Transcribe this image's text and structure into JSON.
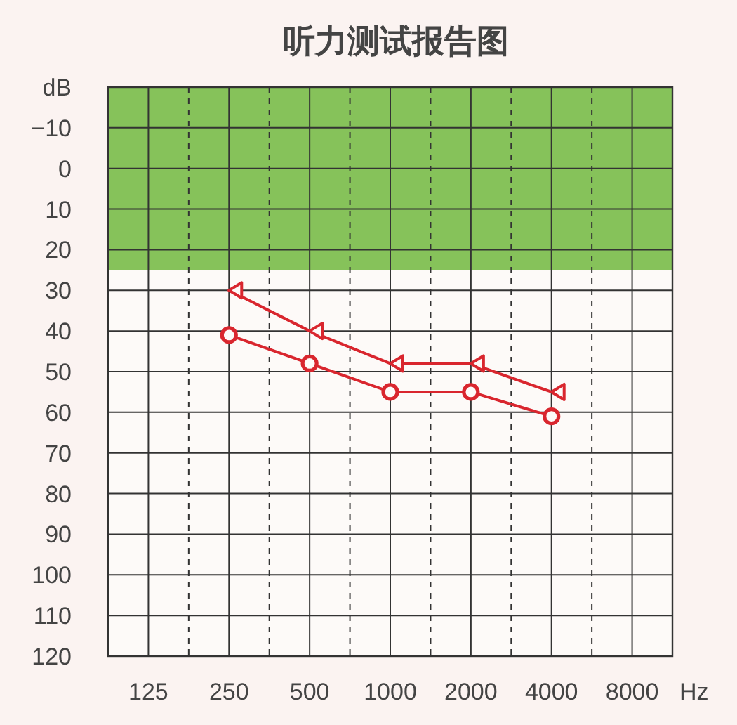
{
  "chart_data": {
    "type": "line",
    "title": "听力测试报告图",
    "ylabel": "dB",
    "xlabel": "Hz",
    "categories": [
      "125",
      "250",
      "500",
      "1000",
      "2000",
      "4000",
      "8000"
    ],
    "series": [
      {
        "color": "#d9262e",
        "marker": "circle",
        "values": [
          null,
          41,
          48,
          55,
          55,
          61,
          null
        ]
      },
      {
        "color": "#d9262e",
        "marker": "triangle",
        "values": [
          null,
          30,
          40,
          48,
          48,
          55,
          null
        ]
      }
    ],
    "ylim": [
      120,
      -20
    ],
    "yticks": [
      {
        "value": -10,
        "label": "−10"
      },
      0,
      10,
      20,
      30,
      40,
      50,
      60,
      70,
      80,
      90,
      100,
      110,
      120
    ],
    "bands": [
      {
        "axis": "y",
        "from": -20,
        "to": 25,
        "color": "#86c25a"
      }
    ],
    "grid": true
  }
}
